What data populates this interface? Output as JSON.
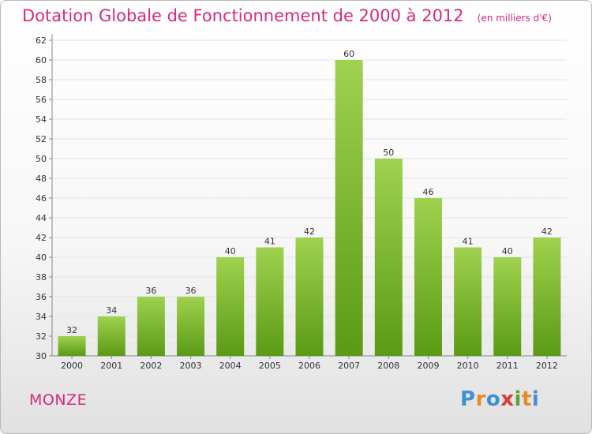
{
  "header": {
    "title": "Dotation Globale de Fonctionnement de 2000 à 2012",
    "unit": "(en milliers d'€)"
  },
  "footer": {
    "commune": "MONZE",
    "brand": "Proxiti"
  },
  "colors": {
    "title": "#d52a7b",
    "bar_light": "#9fd24e",
    "bar_dark": "#5b9a15",
    "grid": "#e3e3e3",
    "axis": "#888888"
  },
  "chart_data": {
    "type": "bar",
    "title": "Dotation Globale de Fonctionnement de 2000 à 2012",
    "subtitle": "(en milliers d'€)",
    "categories": [
      "2000",
      "2001",
      "2002",
      "2003",
      "2004",
      "2005",
      "2006",
      "2007",
      "2008",
      "2009",
      "2010",
      "2011",
      "2012"
    ],
    "values": [
      32,
      34,
      36,
      36,
      40,
      41,
      42,
      60,
      50,
      46,
      41,
      40,
      42
    ],
    "ylim": [
      30,
      62
    ],
    "yticks": [
      30,
      32,
      34,
      36,
      38,
      40,
      42,
      44,
      46,
      48,
      50,
      52,
      54,
      56,
      58,
      60,
      62
    ],
    "grid": true
  }
}
